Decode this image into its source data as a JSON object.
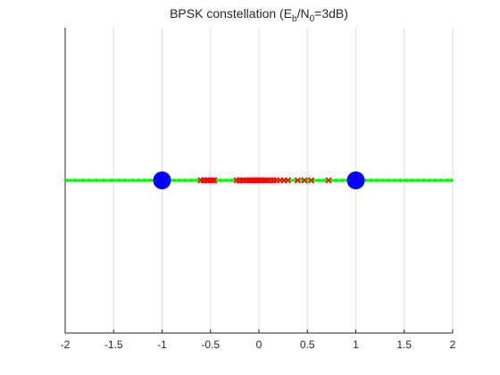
{
  "chart_data": {
    "type": "scatter",
    "title": {
      "main": "BPSK constellation (E",
      "sub1": "b",
      "mid": "/N",
      "sub2": "0",
      "tail": "=3dB)"
    },
    "xlabel": "",
    "ylabel": "",
    "xlim": [
      -2,
      2
    ],
    "ylim": [
      -1,
      1
    ],
    "x_ticks": [
      -2,
      -1.5,
      -1,
      -0.5,
      0,
      0.5,
      1,
      1.5,
      2
    ],
    "x_tick_labels": [
      "-2",
      "-1.5",
      "-1",
      "-0.5",
      "0",
      "0.5",
      "1",
      "1.5",
      "2"
    ],
    "grid": "vertical",
    "series": [
      {
        "marker": "dot",
        "color": "#00ff00",
        "x": [
          -1.98,
          -1.9,
          -1.82,
          -1.75,
          -1.68,
          -1.6,
          -1.52,
          -1.45,
          -1.38,
          -1.3,
          -1.24,
          -1.18,
          -1.12,
          -1.06,
          -1.0,
          -0.94,
          -0.88,
          -0.82,
          -0.76,
          -0.7,
          -0.64,
          -0.58,
          -0.52,
          -0.46,
          -0.4,
          -0.34,
          -0.28,
          -0.22,
          -0.16,
          -0.1,
          -0.04,
          0.02,
          0.08,
          0.14,
          0.2,
          0.26,
          0.32,
          0.38,
          0.44,
          0.5,
          0.56,
          0.62,
          0.68,
          0.74,
          0.8,
          0.86,
          0.92,
          0.98,
          1.04,
          1.1,
          1.16,
          1.22,
          1.28,
          1.34,
          1.4,
          1.46,
          1.52,
          1.58,
          1.64,
          1.7,
          1.76,
          1.82,
          1.88,
          1.94,
          1.99
        ],
        "y": 0
      },
      {
        "marker": "x",
        "color": "#ff0000",
        "x": [
          -0.6,
          -0.57,
          -0.54,
          -0.52,
          -0.5,
          -0.48,
          -0.46,
          -0.23,
          -0.2,
          -0.17,
          -0.15,
          -0.13,
          -0.11,
          -0.09,
          -0.07,
          -0.05,
          -0.03,
          -0.01,
          0.01,
          0.03,
          0.05,
          0.07,
          0.09,
          0.12,
          0.15,
          0.18,
          0.22,
          0.26,
          0.3,
          0.4,
          0.47,
          0.54,
          0.72
        ],
        "y": 0
      },
      {
        "marker": "circle",
        "color": "#0000ff",
        "x": [
          -1,
          1
        ],
        "y": 0
      }
    ]
  }
}
